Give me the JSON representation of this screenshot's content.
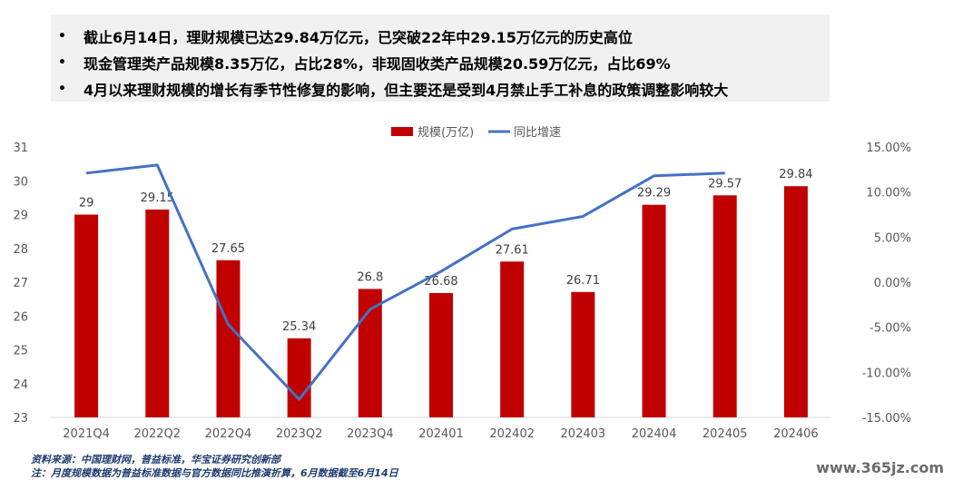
{
  "bullets": [
    "截止6月14日，理财规模已达29.84万亿元，已突破22年中29.15万亿元的历史高位",
    "现金管理类产品规模8.35万亿，占比28%，非现固收类产品规模20.59万亿元，占比69%",
    "4月以来理财规模的增长有季节性修复的影响，但主要还是受到4月禁止手工补息的政策调整影响较大"
  ],
  "bullet_symbol": "•",
  "chart_data": {
    "type": "bar+line",
    "categories": [
      "2021Q4",
      "2022Q2",
      "2022Q4",
      "2023Q2",
      "2023Q4",
      "202401",
      "202402",
      "202403",
      "202404",
      "202405",
      "202406"
    ],
    "series": [
      {
        "name": "规模(万亿)",
        "type": "bar",
        "axis": "left",
        "color": "#c00000",
        "values": [
          29,
          29.15,
          27.65,
          25.34,
          26.8,
          26.68,
          27.61,
          26.71,
          29.29,
          29.57,
          29.84
        ],
        "labels": [
          "29",
          "29.15",
          "27.65",
          "25.34",
          "26.8",
          "26.68",
          "27.61",
          "26.71",
          "29.29",
          "29.57",
          "29.84"
        ]
      },
      {
        "name": "同比增速",
        "type": "line",
        "axis": "right",
        "color": "#4472c4",
        "values": [
          12.1,
          13.0,
          -4.7,
          -13.0,
          -3.0,
          1.2,
          5.9,
          7.3,
          11.8,
          12.1,
          null
        ]
      }
    ],
    "y_left": {
      "min": 23,
      "max": 31,
      "ticks": [
        "23",
        "24",
        "25",
        "26",
        "27",
        "28",
        "29",
        "30",
        "31"
      ]
    },
    "y_right": {
      "min": -15,
      "max": 15,
      "ticks": [
        "-15.00%",
        "-10.00%",
        "-5.00%",
        "0.00%",
        "5.00%",
        "10.00%",
        "15.00%"
      ]
    },
    "legend_position": "top-center",
    "grid": false
  },
  "footnotes": [
    "资料来源：中国理财网，普益标准，华宝证券研究创新部",
    "注：月度规模数据为普益标准数据与官方数据同比推演折算，6月数据截至6月14日"
  ],
  "watermark": "www.365jz.com",
  "colors": {
    "bar": "#c00000",
    "line": "#4472c4",
    "panel": "#f1f1f1"
  }
}
